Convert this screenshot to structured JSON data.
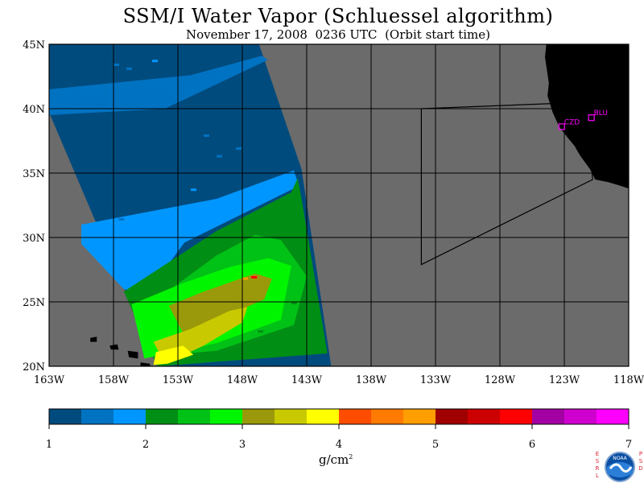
{
  "title": "SSM/I Water Vapor (Schluessel algorithm)",
  "subtitle": "November 17, 2008  0236 UTC  (Orbit start time)",
  "map": {
    "lon_range": [
      -163,
      -118
    ],
    "lat_range": [
      20,
      45
    ],
    "lat_labels": [
      "45N",
      "40N",
      "35N",
      "30N",
      "25N",
      "20N"
    ],
    "lon_labels": [
      "163W",
      "158W",
      "153W",
      "148W",
      "143W",
      "138W",
      "133W",
      "128W",
      "123W",
      "118W"
    ],
    "no_data_color": "#6b6b6b",
    "land_color": "#000000",
    "stations": [
      {
        "id": "CZD",
        "lon": -123.2,
        "lat": 38.6
      },
      {
        "id": "BLU",
        "lon": -120.9,
        "lat": 39.3
      }
    ],
    "station_color": "#ff00ff",
    "domain_box": [
      [
        -134.1,
        40.0
      ],
      [
        -121.3,
        40.5
      ],
      [
        -120.8,
        34.5
      ],
      [
        -134.1,
        27.9
      ]
    ],
    "swath_polygon": [
      [
        -163,
        45
      ],
      [
        -146.7,
        45
      ],
      [
        -143.4,
        35.3
      ],
      [
        -141.1,
        20
      ],
      [
        -154.6,
        20
      ],
      [
        -163,
        39.7
      ]
    ]
  },
  "colorbar": {
    "min": 1,
    "max": 7,
    "tick_labels": [
      "1",
      "2",
      "3",
      "4",
      "5",
      "6",
      "7"
    ],
    "colors": [
      "#004b7e",
      "#0072c2",
      "#0096ff",
      "#008f14",
      "#00c216",
      "#00f500",
      "#99990b",
      "#c9c900",
      "#ffff00",
      "#ff4d00",
      "#ff7a00",
      "#ff9e00",
      "#a10000",
      "#cc0000",
      "#ff0000",
      "#a300a3",
      "#cf00cf",
      "#ff00ff"
    ],
    "units_base": "g/cm",
    "units_exp": "2"
  },
  "logo": {
    "left_text": "ESRL",
    "right_text": "PSD",
    "emblem": "NOAA",
    "icon": "noaa-emblem-icon"
  }
}
